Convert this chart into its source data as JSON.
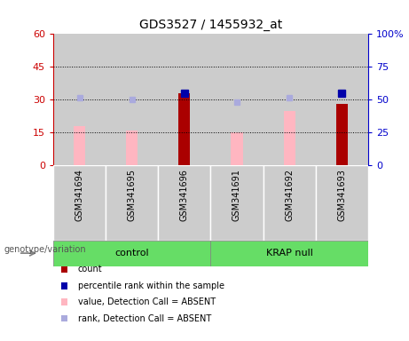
{
  "title": "GDS3527 / 1455932_at",
  "samples": [
    "GSM341694",
    "GSM341695",
    "GSM341696",
    "GSM341691",
    "GSM341692",
    "GSM341693"
  ],
  "absent_value_bars": [
    18,
    16,
    null,
    15,
    25,
    null
  ],
  "absent_rank_dots_left": [
    31,
    30,
    null,
    29,
    31,
    null
  ],
  "count_bars": [
    null,
    null,
    33,
    null,
    null,
    28
  ],
  "percentile_rank_dots_left": [
    null,
    null,
    33,
    null,
    null,
    33
  ],
  "absent_value_color": "#ffb6c1",
  "absent_rank_color": "#aaaadd",
  "count_color": "#aa0000",
  "percentile_color": "#0000aa",
  "left_ylim": [
    0,
    60
  ],
  "left_yticks": [
    0,
    15,
    30,
    45,
    60
  ],
  "right_ylim": [
    0,
    100
  ],
  "right_yticks": [
    0,
    25,
    50,
    75,
    100
  ],
  "left_tick_labels": [
    "0",
    "15",
    "30",
    "45",
    "60"
  ],
  "right_tick_labels": [
    "0",
    "25",
    "50",
    "75",
    "100%"
  ],
  "hlines": [
    15,
    30,
    45
  ],
  "left_axis_color": "#cc0000",
  "right_axis_color": "#0000cc",
  "sample_bg_color": "#cccccc",
  "plot_bg_color": "#ffffff",
  "group_bg_color": "#66dd66",
  "group_spans": [
    {
      "label": "control",
      "start": 0,
      "end": 2
    },
    {
      "label": "KRAP null",
      "start": 3,
      "end": 5
    }
  ],
  "genotype_label": "genotype/variation",
  "legend_items": [
    {
      "label": "count",
      "color": "#aa0000"
    },
    {
      "label": "percentile rank within the sample",
      "color": "#0000aa"
    },
    {
      "label": "value, Detection Call = ABSENT",
      "color": "#ffb6c1"
    },
    {
      "label": "rank, Detection Call = ABSENT",
      "color": "#aaaadd"
    }
  ]
}
